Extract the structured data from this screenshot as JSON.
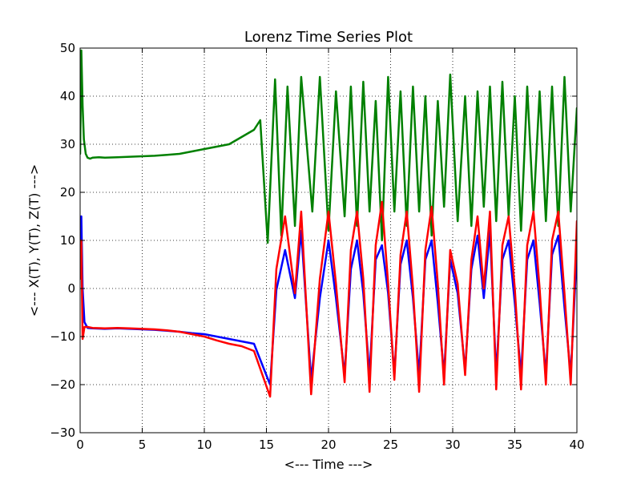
{
  "chart_data": {
    "type": "line",
    "title": "Lorenz Time Series Plot",
    "xlabel": "<--- Time --->",
    "ylabel": "<--- X(T), Y(T), Z(T) --->",
    "xlim": [
      0,
      40
    ],
    "ylim": [
      -30,
      50
    ],
    "x_ticks": [
      0,
      5,
      10,
      15,
      20,
      25,
      30,
      35,
      40
    ],
    "y_ticks": [
      -30,
      -20,
      -10,
      0,
      10,
      20,
      30,
      40,
      50
    ],
    "x_tick_labels": [
      "0",
      "5",
      "10",
      "15",
      "20",
      "25",
      "30",
      "35",
      "40"
    ],
    "y_tick_labels": [
      "−30",
      "−20",
      "−10",
      "0",
      "10",
      "20",
      "30",
      "40",
      "50"
    ],
    "grid": true,
    "series": [
      {
        "key": "Z",
        "color": "#008000",
        "x": [
          0,
          0.1,
          0.2,
          0.3,
          0.45,
          0.6,
          0.8,
          1.0,
          1.5,
          2,
          3,
          4,
          5,
          6,
          7,
          8,
          9,
          10,
          11,
          12,
          13,
          14,
          14.5,
          15.1,
          15.7,
          16.2,
          16.7,
          17.3,
          17.8,
          18.7,
          19.3,
          20.0,
          20.6,
          21.3,
          21.8,
          22.3,
          22.8,
          23.3,
          23.8,
          24.3,
          24.8,
          25.3,
          25.8,
          26.3,
          26.8,
          27.3,
          27.8,
          28.3,
          28.8,
          29.3,
          29.8,
          30.4,
          31.0,
          31.5,
          32.0,
          32.5,
          33.0,
          33.5,
          34.0,
          34.5,
          35.0,
          35.5,
          36.0,
          36.5,
          37.0,
          37.5,
          38.0,
          38.5,
          39.0,
          39.5,
          40
        ],
        "values": [
          28,
          49.5,
          38,
          31,
          28,
          27.2,
          27,
          27.2,
          27.3,
          27.2,
          27.3,
          27.4,
          27.5,
          27.6,
          27.8,
          28,
          28.5,
          29,
          29.5,
          30,
          31.5,
          33,
          35,
          9.5,
          43.5,
          11,
          42,
          13,
          44,
          16,
          44,
          12,
          41,
          15,
          42,
          13,
          43,
          16,
          39,
          10,
          44,
          16,
          41,
          13,
          42,
          16,
          40,
          11,
          39,
          17,
          44.5,
          14,
          40,
          13,
          41,
          17,
          42,
          14,
          43,
          15,
          40,
          12,
          42,
          16,
          41,
          14,
          42,
          13,
          44,
          16,
          37.5
        ]
      },
      {
        "key": "Y",
        "color": "#0000ff",
        "x": [
          0,
          0.1,
          0.2,
          0.35,
          0.6,
          1,
          2,
          3,
          4,
          5,
          6,
          7,
          8,
          9,
          10,
          11,
          12,
          13,
          14,
          15.3,
          15.8,
          16.5,
          17.3,
          17.8,
          18.6,
          19.3,
          20.0,
          20.6,
          21.3,
          21.8,
          22.3,
          22.8,
          23.3,
          23.8,
          24.3,
          24.8,
          25.3,
          25.8,
          26.3,
          26.8,
          27.3,
          27.8,
          28.3,
          28.8,
          29.3,
          29.8,
          30.4,
          31.0,
          31.5,
          32.0,
          32.5,
          33.0,
          33.5,
          34.0,
          34.5,
          35.0,
          35.5,
          36.0,
          36.5,
          37.0,
          37.5,
          38.0,
          38.5,
          39.0,
          39.5,
          40
        ],
        "values": [
          5,
          15,
          0,
          -7,
          -8.2,
          -8.3,
          -8.4,
          -8.3,
          -8.4,
          -8.5,
          -8.6,
          -8.8,
          -9,
          -9.3,
          -9.5,
          -10,
          -10.5,
          -11,
          -11.5,
          -20,
          -0.3,
          8,
          -2,
          12,
          -19,
          -2,
          10,
          -2,
          -18,
          4,
          10,
          -1,
          -18,
          6,
          9,
          -1,
          -18,
          5,
          10,
          -2,
          -18,
          6,
          10,
          -3,
          -18,
          6,
          -1,
          -17,
          4,
          11,
          -2,
          12,
          -18,
          6,
          10,
          -3,
          -18,
          6,
          10,
          -3,
          -18,
          7,
          11,
          -4,
          -18,
          8
        ]
      },
      {
        "key": "X",
        "color": "#ff0000",
        "x": [
          0,
          0.1,
          0.2,
          0.35,
          0.6,
          1,
          2,
          3,
          4,
          5,
          6,
          7,
          8,
          9,
          10,
          11,
          12,
          13,
          14,
          15.3,
          15.8,
          16.5,
          17.3,
          17.8,
          18.6,
          19.3,
          20.0,
          20.6,
          21.3,
          21.8,
          22.3,
          22.8,
          23.3,
          23.8,
          24.3,
          24.8,
          25.3,
          25.8,
          26.3,
          26.8,
          27.3,
          27.8,
          28.3,
          28.8,
          29.3,
          29.8,
          30.4,
          31.0,
          31.5,
          32.0,
          32.5,
          33.0,
          33.5,
          34.0,
          34.5,
          35.0,
          35.5,
          36.0,
          36.5,
          37.0,
          37.5,
          38.0,
          38.5,
          39.0,
          39.5,
          40
        ],
        "values": [
          2,
          10,
          -10.5,
          -8,
          -8,
          -8.2,
          -8.3,
          -8.2,
          -8.3,
          -8.4,
          -8.5,
          -8.7,
          -9,
          -9.5,
          -10,
          -10.8,
          -11.5,
          -12,
          -13,
          -22.5,
          4,
          15,
          -1,
          16,
          -22,
          2,
          16,
          1,
          -19.5,
          8,
          16,
          2,
          -21.5,
          9,
          18,
          1,
          -19,
          7,
          16,
          0,
          -21.5,
          8,
          17,
          1,
          -20,
          8,
          1,
          -18,
          6,
          15,
          0,
          16,
          -21,
          9,
          15,
          0,
          -21,
          9,
          16,
          0,
          -20,
          10,
          16,
          -1,
          -20,
          14
        ]
      }
    ]
  }
}
